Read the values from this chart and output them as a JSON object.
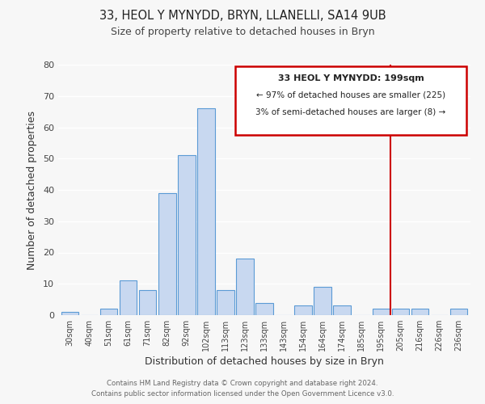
{
  "title": "33, HEOL Y MYNYDD, BRYN, LLANELLI, SA14 9UB",
  "subtitle": "Size of property relative to detached houses in Bryn",
  "xlabel": "Distribution of detached houses by size in Bryn",
  "ylabel": "Number of detached properties",
  "bar_labels": [
    "30sqm",
    "40sqm",
    "51sqm",
    "61sqm",
    "71sqm",
    "82sqm",
    "92sqm",
    "102sqm",
    "113sqm",
    "123sqm",
    "133sqm",
    "143sqm",
    "154sqm",
    "164sqm",
    "174sqm",
    "185sqm",
    "195sqm",
    "205sqm",
    "216sqm",
    "226sqm",
    "236sqm"
  ],
  "bar_values": [
    1,
    0,
    2,
    11,
    8,
    39,
    51,
    66,
    8,
    18,
    4,
    0,
    3,
    9,
    3,
    0,
    2,
    2,
    2,
    0,
    2
  ],
  "bar_color": "#c8d8f0",
  "bar_edge_color": "#5b9bd5",
  "ylim": [
    0,
    80
  ],
  "yticks": [
    0,
    10,
    20,
    30,
    40,
    50,
    60,
    70,
    80
  ],
  "vline_x_idx": 16.5,
  "vline_color": "#cc0000",
  "annotation_title": "33 HEOL Y MYNYDD: 199sqm",
  "annotation_line1": "← 97% of detached houses are smaller (225)",
  "annotation_line2": "3% of semi-detached houses are larger (8) →",
  "annotation_box_edge": "#cc0000",
  "footer1": "Contains HM Land Registry data © Crown copyright and database right 2024.",
  "footer2": "Contains public sector information licensed under the Open Government Licence v3.0.",
  "background_color": "#f7f7f7"
}
